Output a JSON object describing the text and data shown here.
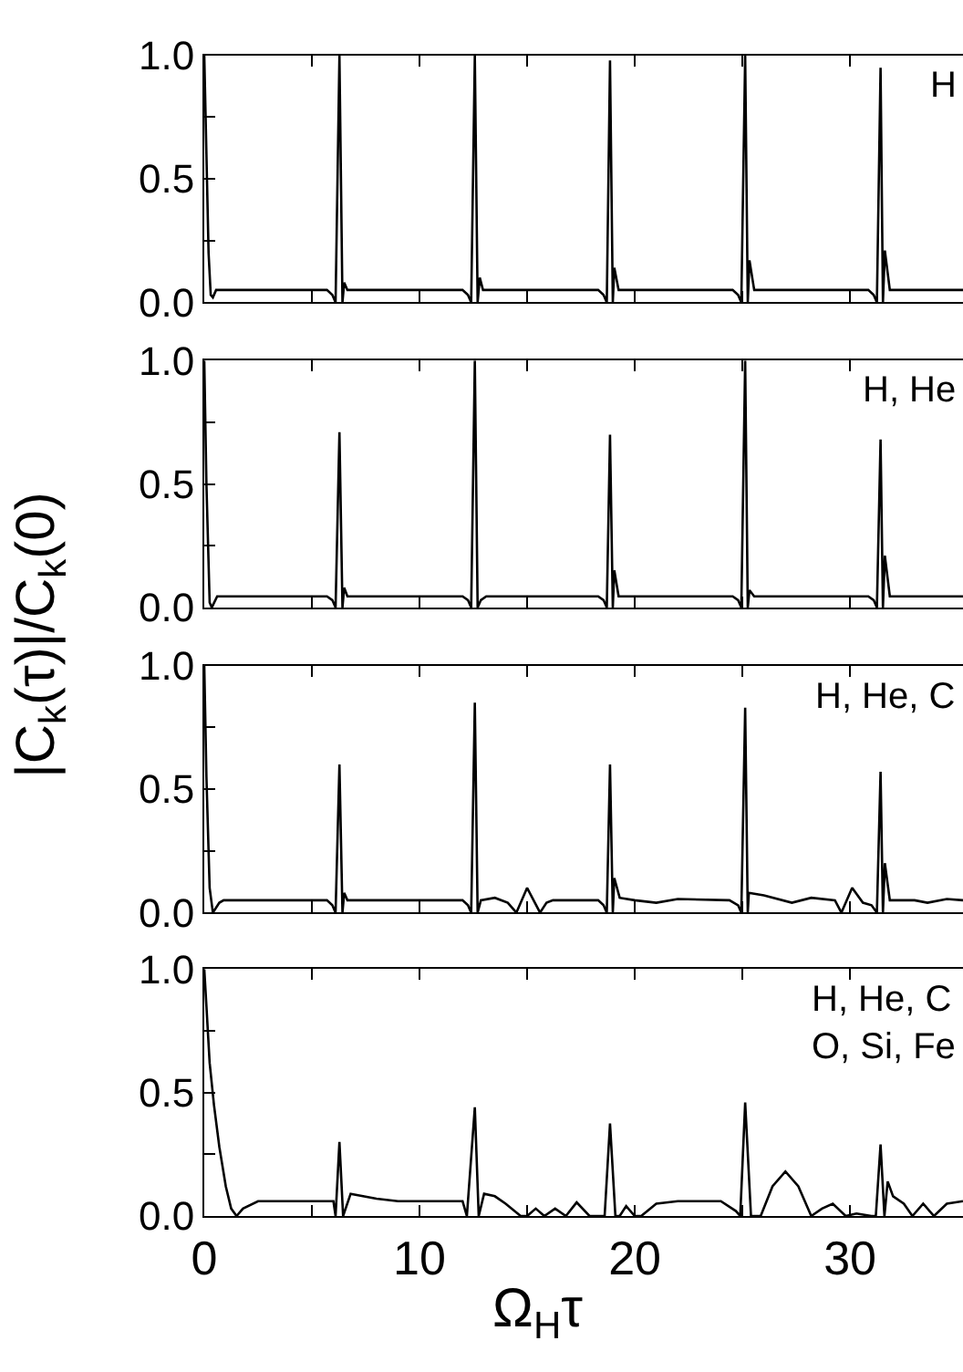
{
  "chart_data": [
    {
      "type": "line",
      "color": "#000000",
      "tick_labels": "y",
      "xlim": [
        0,
        35.25
      ],
      "ylim": [
        0,
        1.0
      ],
      "xticks": [
        0,
        {
          "value": 5,
          "label": null
        },
        10,
        {
          "value": 15,
          "label": null
        },
        20,
        {
          "value": 25,
          "label": null
        },
        30
      ],
      "yticks": [
        {
          "value": 0,
          "label": "0.0"
        },
        {
          "value": 0.25,
          "label": null
        },
        {
          "value": 0.5,
          "label": "0.5"
        },
        {
          "value": 0.75,
          "label": null
        },
        {
          "value": 1.0,
          "label": "1.0"
        }
      ],
      "ylabel": "|C$_{k}$(τ)|/C$_{k}$(0)",
      "annotations": [
        "H"
      ],
      "x": [
        0,
        0.1,
        0.2,
        0.3,
        0.4,
        0.55,
        5.7,
        5.95,
        6.1,
        6.28,
        6.42,
        6.5,
        6.65,
        12.0,
        12.25,
        12.4,
        12.57,
        12.7,
        12.8,
        12.95,
        18.3,
        18.55,
        18.7,
        18.85,
        18.98,
        19.05,
        19.25,
        24.55,
        24.8,
        24.95,
        25.13,
        25.25,
        25.33,
        25.55,
        30.85,
        31.1,
        31.25,
        31.42,
        31.53,
        31.62,
        31.85,
        35.25
      ],
      "values": [
        1.0,
        0.6,
        0.2,
        0.03,
        0.02,
        0.05,
        0.05,
        0.03,
        0.0,
        1.0,
        0.0,
        0.08,
        0.05,
        0.05,
        0.03,
        0.0,
        1.0,
        0.0,
        0.1,
        0.05,
        0.05,
        0.03,
        0.0,
        0.98,
        0.0,
        0.14,
        0.05,
        0.05,
        0.03,
        0.0,
        1.0,
        0.0,
        0.17,
        0.05,
        0.05,
        0.03,
        0.0,
        0.95,
        0.0,
        0.21,
        0.05,
        0.05
      ]
    },
    {
      "type": "line",
      "color": "#000000",
      "tick_labels": "y",
      "xlim": [
        0,
        35.25
      ],
      "ylim": [
        0,
        1.0
      ],
      "xticks": [
        0,
        {
          "value": 5,
          "label": null
        },
        10,
        {
          "value": 15,
          "label": null
        },
        20,
        {
          "value": 25,
          "label": null
        },
        30
      ],
      "yticks": [
        {
          "value": 0,
          "label": "0.0"
        },
        {
          "value": 0.25,
          "label": null
        },
        {
          "value": 0.5,
          "label": "0.5"
        },
        {
          "value": 0.75,
          "label": null
        },
        {
          "value": 1.0,
          "label": "1.0"
        }
      ],
      "annotations": [
        "H, He"
      ],
      "x": [
        0,
        0.1,
        0.25,
        0.35,
        0.6,
        5.7,
        5.95,
        6.1,
        6.28,
        6.42,
        6.5,
        6.65,
        12.0,
        12.25,
        12.4,
        12.57,
        12.7,
        12.85,
        13.1,
        18.3,
        18.55,
        18.7,
        18.85,
        18.98,
        19.05,
        19.25,
        24.55,
        24.8,
        24.95,
        25.13,
        25.25,
        25.33,
        25.55,
        30.85,
        31.1,
        31.25,
        31.42,
        31.53,
        31.62,
        31.85,
        35.25
      ],
      "values": [
        1.0,
        0.5,
        0.02,
        0.0,
        0.045,
        0.045,
        0.03,
        0.0,
        0.71,
        0.0,
        0.08,
        0.045,
        0.045,
        0.03,
        0.0,
        1.0,
        0.0,
        0.03,
        0.045,
        0.045,
        0.03,
        0.0,
        0.7,
        0.0,
        0.15,
        0.045,
        0.045,
        0.03,
        0.0,
        1.0,
        0.0,
        0.07,
        0.045,
        0.045,
        0.03,
        0.0,
        0.68,
        0.0,
        0.21,
        0.045,
        0.045
      ]
    },
    {
      "type": "line",
      "color": "#000000",
      "tick_labels": "y",
      "xlim": [
        0,
        35.25
      ],
      "ylim": [
        0,
        1.0
      ],
      "xticks": [
        0,
        {
          "value": 5,
          "label": null
        },
        10,
        {
          "value": 15,
          "label": null
        },
        20,
        {
          "value": 25,
          "label": null
        },
        30
      ],
      "yticks": [
        {
          "value": 0,
          "label": "0.0"
        },
        {
          "value": 0.25,
          "label": null
        },
        {
          "value": 0.5,
          "label": "0.5"
        },
        {
          "value": 0.75,
          "label": null
        },
        {
          "value": 1.0,
          "label": "1.0"
        }
      ],
      "annotations": [
        "H, He, C"
      ],
      "x": [
        0,
        0.1,
        0.25,
        0.4,
        0.7,
        0.9,
        5.7,
        5.95,
        6.1,
        6.28,
        6.42,
        6.5,
        6.65,
        12.0,
        12.25,
        12.4,
        12.57,
        12.7,
        12.85,
        13.5,
        14.1,
        14.5,
        15.0,
        15.6,
        15.9,
        16.2,
        18.3,
        18.55,
        18.7,
        18.85,
        18.98,
        19.05,
        19.3,
        20.0,
        21.0,
        22.0,
        24.4,
        24.8,
        24.95,
        25.13,
        25.25,
        25.3,
        26.0,
        27.3,
        28.2,
        29.3,
        29.6,
        30.1,
        30.6,
        31.0,
        31.25,
        31.42,
        31.53,
        31.62,
        31.85,
        33.0,
        33.6,
        34.5,
        35.25
      ],
      "values": [
        1.0,
        0.55,
        0.1,
        0.0,
        0.04,
        0.05,
        0.05,
        0.03,
        0.0,
        0.6,
        0.0,
        0.08,
        0.05,
        0.05,
        0.03,
        0.0,
        0.85,
        0.0,
        0.05,
        0.06,
        0.04,
        0.0,
        0.1,
        0.0,
        0.04,
        0.05,
        0.05,
        0.03,
        0.0,
        0.6,
        0.0,
        0.14,
        0.06,
        0.05,
        0.04,
        0.055,
        0.05,
        0.03,
        0.0,
        0.83,
        0.0,
        0.08,
        0.07,
        0.04,
        0.06,
        0.05,
        0.0,
        0.1,
        0.04,
        0.03,
        0.0,
        0.57,
        0.0,
        0.2,
        0.05,
        0.05,
        0.04,
        0.055,
        0.05
      ]
    },
    {
      "type": "line",
      "color": "#000000",
      "xlim": [
        0,
        35.25
      ],
      "ylim": [
        0,
        1.0
      ],
      "xticks": [
        0,
        {
          "value": 5,
          "label": null
        },
        10,
        {
          "value": 15,
          "label": null
        },
        20,
        {
          "value": 25,
          "label": null
        },
        30
      ],
      "yticks": [
        {
          "value": 0,
          "label": "0.0"
        },
        {
          "value": 0.25,
          "label": null
        },
        {
          "value": 0.5,
          "label": "0.5"
        },
        {
          "value": 0.75,
          "label": null
        },
        {
          "value": 1.0,
          "label": "1.0"
        }
      ],
      "xlabel": "Ω$_{H}$τ",
      "annotations": [
        "H, He, C\nO, Si, Fe"
      ],
      "x": [
        0,
        0.1,
        0.25,
        0.45,
        0.7,
        1.0,
        1.25,
        1.5,
        1.8,
        2.5,
        6.0,
        6.1,
        6.28,
        6.45,
        6.8,
        8.0,
        9.0,
        12.0,
        12.2,
        12.57,
        12.75,
        13.0,
        13.5,
        14.0,
        14.7,
        15.0,
        15.4,
        15.8,
        16.3,
        16.8,
        17.3,
        17.9,
        18.6,
        18.85,
        19.1,
        19.3,
        19.6,
        20.0,
        20.3,
        21.0,
        22.0,
        23.0,
        24.0,
        24.7,
        24.9,
        25.13,
        25.4,
        25.85,
        26.4,
        27.0,
        27.6,
        28.2,
        28.7,
        29.2,
        29.8,
        30.3,
        31.0,
        31.2,
        31.42,
        31.6,
        31.75,
        32.0,
        32.5,
        32.9,
        33.4,
        33.9,
        34.5,
        35.25
      ],
      "values": [
        1.0,
        0.85,
        0.62,
        0.45,
        0.28,
        0.12,
        0.03,
        0.0,
        0.03,
        0.06,
        0.06,
        0.0,
        0.3,
        0.0,
        0.09,
        0.07,
        0.06,
        0.06,
        0.0,
        0.44,
        0.0,
        0.09,
        0.08,
        0.05,
        0.0,
        0.0,
        0.03,
        0.0,
        0.03,
        0.0,
        0.055,
        0.0,
        0.0,
        0.375,
        0.0,
        0.0,
        0.04,
        0.0,
        0.0,
        0.05,
        0.06,
        0.06,
        0.06,
        0.02,
        0.0,
        0.46,
        0.0,
        0.0,
        0.12,
        0.18,
        0.12,
        0.0,
        0.03,
        0.05,
        0.0,
        0.01,
        0.0,
        0.0,
        0.29,
        0.0,
        0.14,
        0.08,
        0.05,
        0.0,
        0.05,
        0.0,
        0.05,
        0.06
      ]
    }
  ]
}
